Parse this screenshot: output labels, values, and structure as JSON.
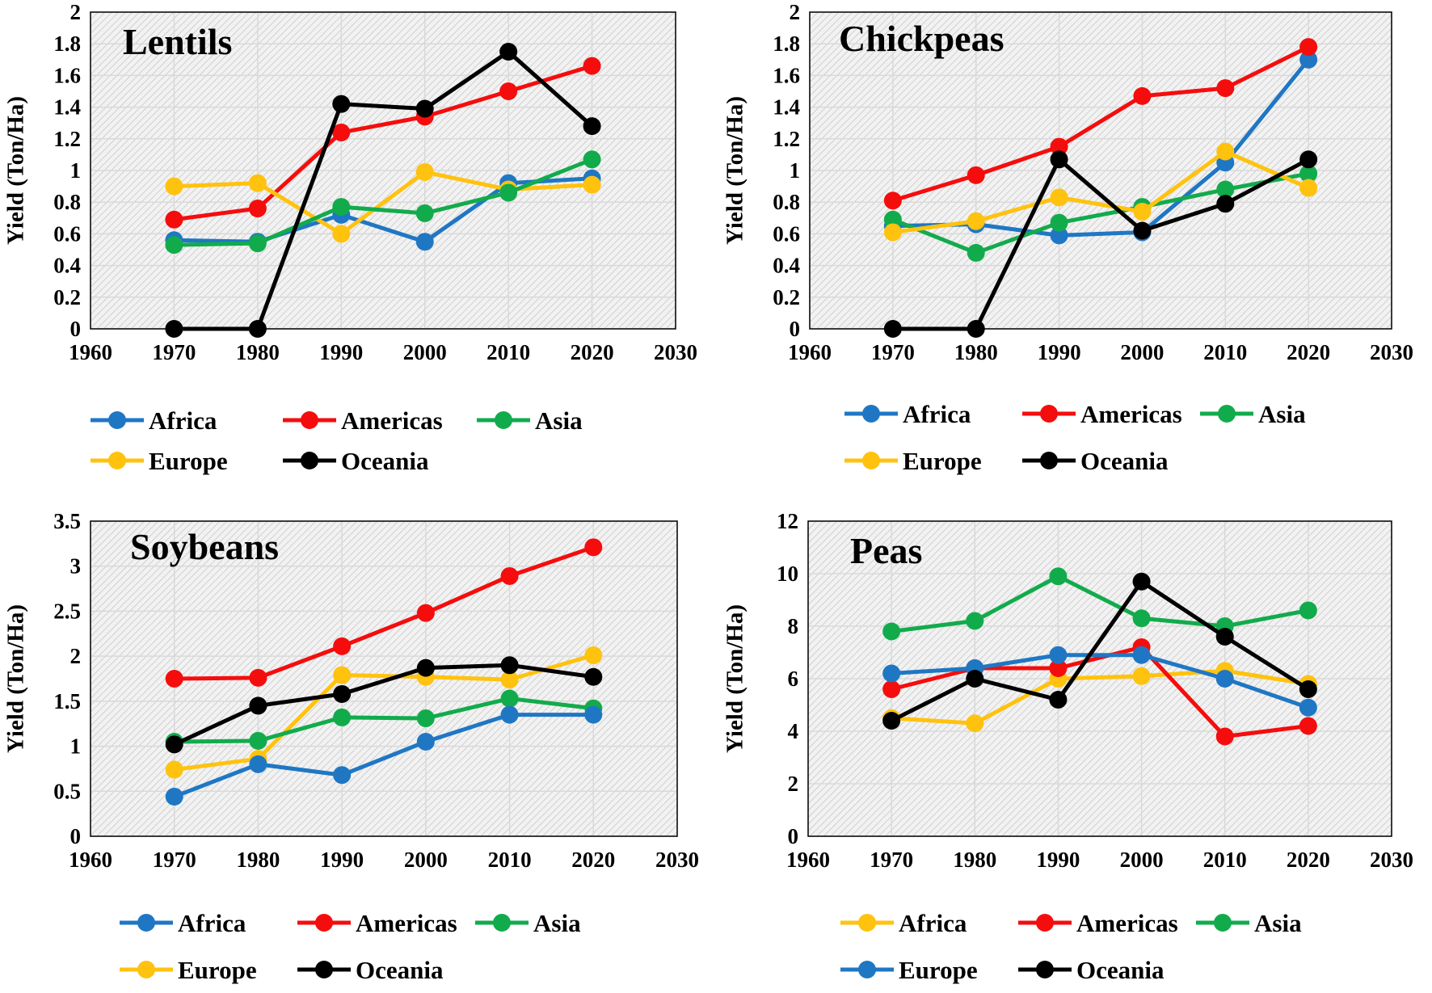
{
  "colors": {
    "blue": "#1f77c4",
    "red": "#f50d0d",
    "green": "#12ab4c",
    "yellow": "#ffc20e",
    "black": "#000000"
  },
  "chart_data": [
    {
      "type": "line",
      "title": "Lentils",
      "ylabel": "Yield (Ton/Ha)",
      "xlabel": "",
      "xlim": [
        1960,
        2030
      ],
      "ylim": [
        0,
        2
      ],
      "xticks": [
        "1960",
        "1970",
        "1980",
        "1990",
        "2000",
        "2010",
        "2020",
        "2030"
      ],
      "yticks": [
        "0",
        "0.2",
        "0.4",
        "0.6",
        "0.8",
        "1",
        "1.2",
        "1.4",
        "1.6",
        "1.8",
        "2"
      ],
      "x": [
        1970,
        1980,
        1990,
        2000,
        2010,
        2020
      ],
      "series": [
        {
          "name": "Africa",
          "color": "#1f77c4",
          "values": [
            0.56,
            0.55,
            0.72,
            0.55,
            0.92,
            0.95
          ]
        },
        {
          "name": "Americas",
          "color": "#f50d0d",
          "values": [
            0.69,
            0.76,
            1.24,
            1.34,
            1.5,
            1.66
          ]
        },
        {
          "name": "Europe",
          "color": "#ffc20e",
          "values": [
            0.9,
            0.92,
            0.6,
            0.99,
            0.88,
            0.91
          ]
        },
        {
          "name": "Asia",
          "color": "#12ab4c",
          "values": [
            0.53,
            0.54,
            0.77,
            0.73,
            0.86,
            1.07
          ]
        },
        {
          "name": "Oceania",
          "color": "#000000",
          "values": [
            0.0,
            0.0,
            1.42,
            1.39,
            1.75,
            1.28
          ]
        }
      ]
    },
    {
      "type": "line",
      "title": "Chickpeas",
      "ylabel": "Yield (Ton/Ha)",
      "xlabel": "",
      "xlim": [
        1960,
        2030
      ],
      "ylim": [
        0,
        2
      ],
      "xticks": [
        "1960",
        "1970",
        "1980",
        "1990",
        "2000",
        "2010",
        "2020",
        "2030"
      ],
      "yticks": [
        "0",
        "0.2",
        "0.4",
        "0.6",
        "0.8",
        "1",
        "1.2",
        "1.4",
        "1.6",
        "1.8",
        "2"
      ],
      "x": [
        1970,
        1980,
        1990,
        2000,
        2010,
        2020
      ],
      "series": [
        {
          "name": "Africa",
          "color": "#1f77c4",
          "values": [
            0.65,
            0.66,
            0.59,
            0.61,
            1.05,
            1.7
          ]
        },
        {
          "name": "Americas",
          "color": "#f50d0d",
          "values": [
            0.81,
            0.97,
            1.15,
            1.47,
            1.52,
            1.78
          ]
        },
        {
          "name": "Asia",
          "color": "#12ab4c",
          "values": [
            0.69,
            0.48,
            0.67,
            0.77,
            0.88,
            0.98
          ]
        },
        {
          "name": "Europe",
          "color": "#ffc20e",
          "values": [
            0.61,
            0.68,
            0.83,
            0.74,
            1.12,
            0.89
          ]
        },
        {
          "name": "Oceania",
          "color": "#000000",
          "values": [
            0.0,
            0.0,
            1.07,
            0.62,
            0.79,
            1.07
          ]
        }
      ]
    },
    {
      "type": "line",
      "title": "Soybeans",
      "ylabel": "Yield (Ton/Ha)",
      "xlabel": "",
      "xlim": [
        1960,
        2030
      ],
      "ylim": [
        0,
        3.5
      ],
      "xticks": [
        "1960",
        "1970",
        "1980",
        "1990",
        "2000",
        "2010",
        "2020",
        "2030"
      ],
      "yticks": [
        "0",
        "0.5",
        "1",
        "1.5",
        "2",
        "2.5",
        "3",
        "3.5"
      ],
      "x": [
        1970,
        1980,
        1990,
        2000,
        2010,
        2020
      ],
      "series": [
        {
          "name": "Americas",
          "color": "#f50d0d",
          "values": [
            1.75,
            1.76,
            2.11,
            2.48,
            2.89,
            3.21
          ]
        },
        {
          "name": "Europe",
          "color": "#ffc20e",
          "values": [
            0.74,
            0.86,
            1.79,
            1.77,
            1.74,
            2.01
          ]
        },
        {
          "name": "Asia",
          "color": "#12ab4c",
          "values": [
            1.05,
            1.06,
            1.32,
            1.31,
            1.53,
            1.42
          ]
        },
        {
          "name": "Africa",
          "color": "#1f77c4",
          "values": [
            0.44,
            0.8,
            0.68,
            1.05,
            1.35,
            1.35
          ]
        },
        {
          "name": "Oceania",
          "color": "#000000",
          "values": [
            1.02,
            1.45,
            1.58,
            1.87,
            1.9,
            1.77
          ]
        }
      ]
    },
    {
      "type": "line",
      "title": "Peas",
      "ylabel": "Yield (Ton/Ha)",
      "xlabel": "",
      "xlim": [
        1960,
        2030
      ],
      "ylim": [
        0,
        12
      ],
      "xticks": [
        "1960",
        "1970",
        "1980",
        "1990",
        "2000",
        "2010",
        "2020",
        "2030"
      ],
      "yticks": [
        "0",
        "2",
        "4",
        "6",
        "8",
        "10",
        "12"
      ],
      "x": [
        1970,
        1980,
        1990,
        2000,
        2010,
        2020
      ],
      "series": [
        {
          "name": "Africa",
          "color": "#ffc20e",
          "values": [
            4.5,
            4.3,
            6.0,
            6.1,
            6.3,
            5.8
          ]
        },
        {
          "name": "Asia",
          "color": "#12ab4c",
          "values": [
            7.8,
            8.2,
            9.9,
            8.3,
            8.0,
            8.6
          ]
        },
        {
          "name": "Americas",
          "color": "#f50d0d",
          "values": [
            5.6,
            6.4,
            6.4,
            7.2,
            3.8,
            4.2
          ]
        },
        {
          "name": "Europe",
          "color": "#1f77c4",
          "values": [
            6.2,
            6.4,
            6.9,
            6.9,
            6.0,
            4.9
          ]
        },
        {
          "name": "Oceania",
          "color": "#000000",
          "values": [
            4.4,
            6.0,
            5.2,
            9.7,
            7.6,
            5.6
          ]
        }
      ]
    }
  ],
  "legends": [
    {
      "rows": [
        [
          {
            "name": "Africa",
            "color": "#1f77c4"
          },
          {
            "name": "Americas",
            "color": "#f50d0d"
          },
          {
            "name": "Asia",
            "color": "#12ab4c"
          }
        ],
        [
          {
            "name": "Europe",
            "color": "#ffc20e"
          },
          {
            "name": "Oceania",
            "color": "#000000"
          }
        ]
      ]
    },
    {
      "rows": [
        [
          {
            "name": "Africa",
            "color": "#1f77c4"
          },
          {
            "name": "Americas",
            "color": "#f50d0d"
          },
          {
            "name": "Asia",
            "color": "#12ab4c"
          }
        ],
        [
          {
            "name": "Europe",
            "color": "#ffc20e"
          },
          {
            "name": "Oceania",
            "color": "#000000"
          }
        ]
      ]
    },
    {
      "rows": [
        [
          {
            "name": "Africa",
            "color": "#1f77c4"
          },
          {
            "name": "Americas",
            "color": "#f50d0d"
          },
          {
            "name": "Asia",
            "color": "#12ab4c"
          }
        ],
        [
          {
            "name": "Europe",
            "color": "#ffc20e"
          },
          {
            "name": "Oceania",
            "color": "#000000"
          }
        ]
      ]
    },
    {
      "rows": [
        [
          {
            "name": "Africa",
            "color": "#ffc20e"
          },
          {
            "name": "Americas",
            "color": "#f50d0d"
          },
          {
            "name": "Asia",
            "color": "#12ab4c"
          }
        ],
        [
          {
            "name": "Europe",
            "color": "#1f77c4"
          },
          {
            "name": "Oceania",
            "color": "#000000"
          }
        ]
      ]
    }
  ]
}
